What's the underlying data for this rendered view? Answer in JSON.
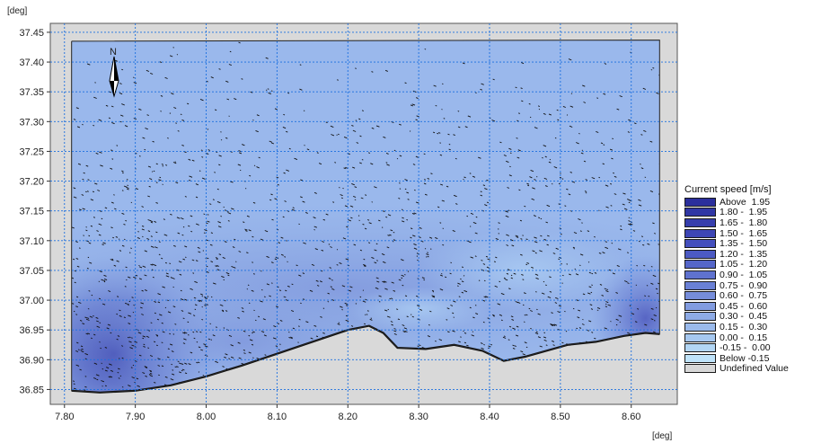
{
  "chart_data": {
    "type": "heatmap",
    "title": "",
    "xlabel": "",
    "ylabel": "",
    "x_unit": "[deg]",
    "y_unit": "[deg]",
    "xlim": [
      7.78,
      8.665
    ],
    "ylim": [
      36.825,
      37.465
    ],
    "x_ticks": [
      "7.80",
      "7.90",
      "8.00",
      "8.10",
      "8.20",
      "8.30",
      "8.40",
      "8.50",
      "8.60"
    ],
    "y_ticks": [
      "37.45",
      "37.40",
      "37.35",
      "37.30",
      "37.25",
      "37.20",
      "37.15",
      "37.10",
      "37.05",
      "37.00",
      "36.95",
      "36.90",
      "36.85"
    ],
    "grid": true,
    "north_arrow": "N",
    "domain_outline": [
      [
        7.81,
        37.435
      ],
      [
        8.64,
        37.437
      ],
      [
        8.64,
        36.943
      ],
      [
        8.62,
        36.945
      ],
      [
        8.59,
        36.94
      ],
      [
        8.55,
        36.93
      ],
      [
        8.51,
        36.925
      ],
      [
        8.48,
        36.915
      ],
      [
        8.45,
        36.905
      ],
      [
        8.42,
        36.898
      ],
      [
        8.39,
        36.915
      ],
      [
        8.35,
        36.925
      ],
      [
        8.31,
        36.918
      ],
      [
        8.27,
        36.92
      ],
      [
        8.25,
        36.945
      ],
      [
        8.23,
        36.957
      ],
      [
        8.2,
        36.95
      ],
      [
        8.15,
        36.93
      ],
      [
        8.1,
        36.91
      ],
      [
        8.05,
        36.89
      ],
      [
        8.0,
        36.872
      ],
      [
        7.95,
        36.857
      ],
      [
        7.9,
        36.848
      ],
      [
        7.85,
        36.845
      ],
      [
        7.81,
        36.848
      ]
    ],
    "legend": {
      "title": "Current speed [m/s]",
      "position": "right",
      "entries": [
        {
          "label": "Above  1.95",
          "color": "#2b2f9c"
        },
        {
          "label": "1.80 -  1.95",
          "color": "#3037a4"
        },
        {
          "label": "1.65 -  1.80",
          "color": "#363ead"
        },
        {
          "label": "1.50 -  1.65",
          "color": "#3d46b5"
        },
        {
          "label": "1.35 -  1.50",
          "color": "#444fbd"
        },
        {
          "label": "1.20 -  1.35",
          "color": "#4c5ac3"
        },
        {
          "label": "1.05 -  1.20",
          "color": "#5566c9"
        },
        {
          "label": "0.90 -  1.05",
          "color": "#5f72cf"
        },
        {
          "label": "0.75 -  0.90",
          "color": "#6a80d5"
        },
        {
          "label": "0.60 -  0.75",
          "color": "#768dda"
        },
        {
          "label": "0.45 -  0.60",
          "color": "#829ce0"
        },
        {
          "label": "0.30 -  0.45",
          "color": "#8eabe6"
        },
        {
          "label": "0.15 -  0.30",
          "color": "#9abaec"
        },
        {
          "label": "0.00 -  0.15",
          "color": "#a6c8f0"
        },
        {
          "label": "-0.15 -  0.00",
          "color": "#b2d6f5"
        },
        {
          "label": "Below -0.15",
          "color": "#bfe3fa"
        },
        {
          "label": "Undefined Value",
          "color": "#d8d8d8"
        }
      ]
    }
  },
  "colors": {
    "land": "#d9d9d9",
    "background_water": "#9ab8ec",
    "grid": "#1a6fe0",
    "coast": "#111111"
  }
}
